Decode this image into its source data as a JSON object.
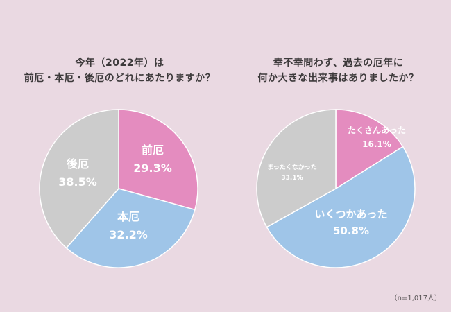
{
  "charts": [
    {
      "title_lines": [
        "今年（2022年）は",
        "前厄・本厄・後厄のどれにあたりますか？"
      ]
    },
    {
      "title_lines": [
        "幸不幸問わず、過去の厄年に",
        "何か大きな出来事はありましたか？"
      ]
    }
  ],
  "note": "（n=1,017人）",
  "chart_data": [
    {
      "type": "pie",
      "slices": [
        {
          "label": "前厄",
          "value": 29.3,
          "display": "29.3%",
          "color": "#e48cbf"
        },
        {
          "label": "本厄",
          "value": 32.2,
          "display": "32.2%",
          "color": "#9fc5e8"
        },
        {
          "label": "後厄",
          "value": 38.5,
          "display": "38.5%",
          "color": "#cccccc"
        }
      ]
    },
    {
      "type": "pie",
      "slices": [
        {
          "label": "たくさんあった",
          "value": 16.1,
          "display": "16.1%",
          "color": "#e48cbf"
        },
        {
          "label": "いくつかあった",
          "value": 50.8,
          "display": "50.8%",
          "color": "#9fc5e8"
        },
        {
          "label": "まったくなかった",
          "value": 33.1,
          "display": "33.1%",
          "color": "#cccccc"
        }
      ]
    }
  ]
}
